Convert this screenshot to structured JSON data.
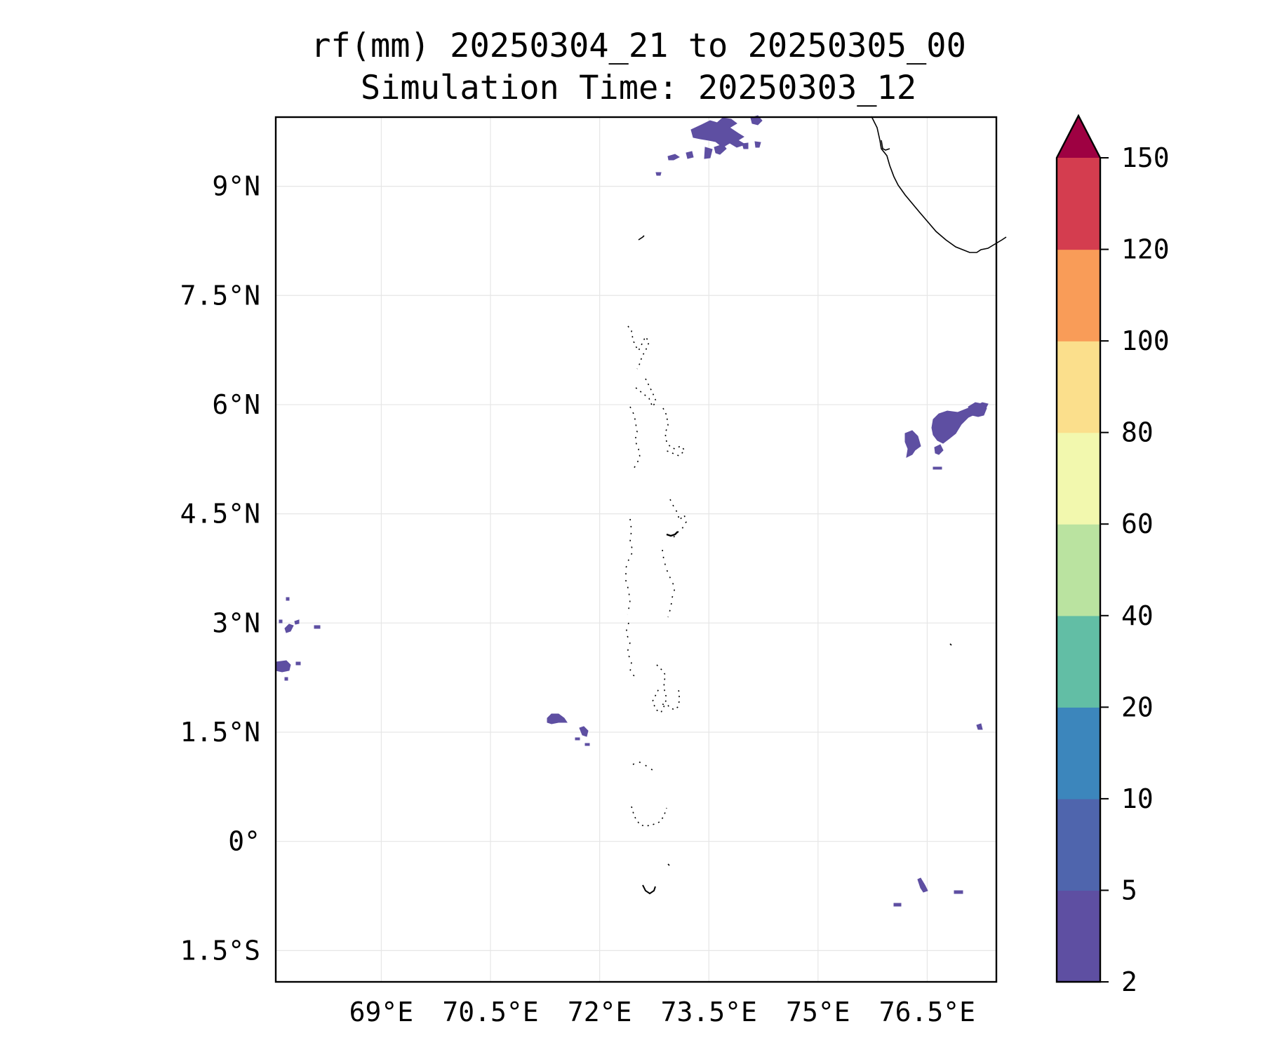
{
  "title": {
    "line1": "rf(mm) 20250304_21 to 20250305_00",
    "line2": "Simulation Time: 20250303_12"
  },
  "map": {
    "lon_range": [
      67.55,
      77.45
    ],
    "lat_range": [
      -1.93,
      9.95
    ],
    "x_ticks": [
      {
        "lon": 69.0,
        "label": "69°E"
      },
      {
        "lon": 70.5,
        "label": "70.5°E"
      },
      {
        "lon": 72.0,
        "label": "72°E"
      },
      {
        "lon": 73.5,
        "label": "73.5°E"
      },
      {
        "lon": 75.0,
        "label": "75°E"
      },
      {
        "lon": 76.5,
        "label": "76.5°E"
      }
    ],
    "y_ticks": [
      {
        "lat": 9.0,
        "label": "9°N"
      },
      {
        "lat": 7.5,
        "label": "7.5°N"
      },
      {
        "lat": 6.0,
        "label": "6°N"
      },
      {
        "lat": 4.5,
        "label": "4.5°N"
      },
      {
        "lat": 3.0,
        "label": "3°N"
      },
      {
        "lat": 1.5,
        "label": "1.5°N"
      },
      {
        "lat": 0.0,
        "label": "0°"
      },
      {
        "lat": -1.5,
        "label": "1.5°S"
      }
    ],
    "gridlines": true,
    "coastline_color": "#000000",
    "rain_fill_color": "#5e4fa2"
  },
  "colorbar": {
    "levels": [
      "2",
      "5",
      "10",
      "20",
      "40",
      "60",
      "80",
      "100",
      "120",
      "150"
    ],
    "colors": [
      "#5e4fa2",
      "#4f65ad",
      "#3c86bc",
      "#62bea5",
      "#bae3a0",
      "#f2f8ae",
      "#fbdf8c",
      "#f99c58",
      "#d43d4f"
    ],
    "extend_color": "#9e0142",
    "extend": "max"
  },
  "chart_data": {
    "type": "heatmap",
    "title": "rf(mm) 20250304_21 to 20250305_00 / Simulation Time: 20250303_12",
    "variable": "rf(mm)",
    "valid_period": [
      "20250304_21",
      "20250305_00"
    ],
    "simulation_time": "20250303_12",
    "x_axis": "longitude (°E)",
    "y_axis": "latitude",
    "xlim": [
      67.55,
      77.45
    ],
    "ylim": [
      -1.93,
      9.95
    ],
    "colorbar_levels": [
      2,
      5,
      10,
      20,
      40,
      60,
      80,
      100,
      120,
      150
    ],
    "rain_regions_2_to_5mm": [
      {
        "area": "near 73.8°E, 9.9°N (north edge)",
        "min_mm": 2,
        "max_mm": 5
      },
      {
        "area": "near 76.9°E, 5.6°N",
        "min_mm": 2,
        "max_mm": 5
      },
      {
        "area": "near 72°E, 1.7°N",
        "min_mm": 2,
        "max_mm": 5
      },
      {
        "area": "near 67.6°E, 2.4°N (west edge)",
        "min_mm": 2,
        "max_mm": 5
      },
      {
        "area": "near 76.9°E, -0.7°N",
        "min_mm": 2,
        "max_mm": 5
      }
    ]
  }
}
